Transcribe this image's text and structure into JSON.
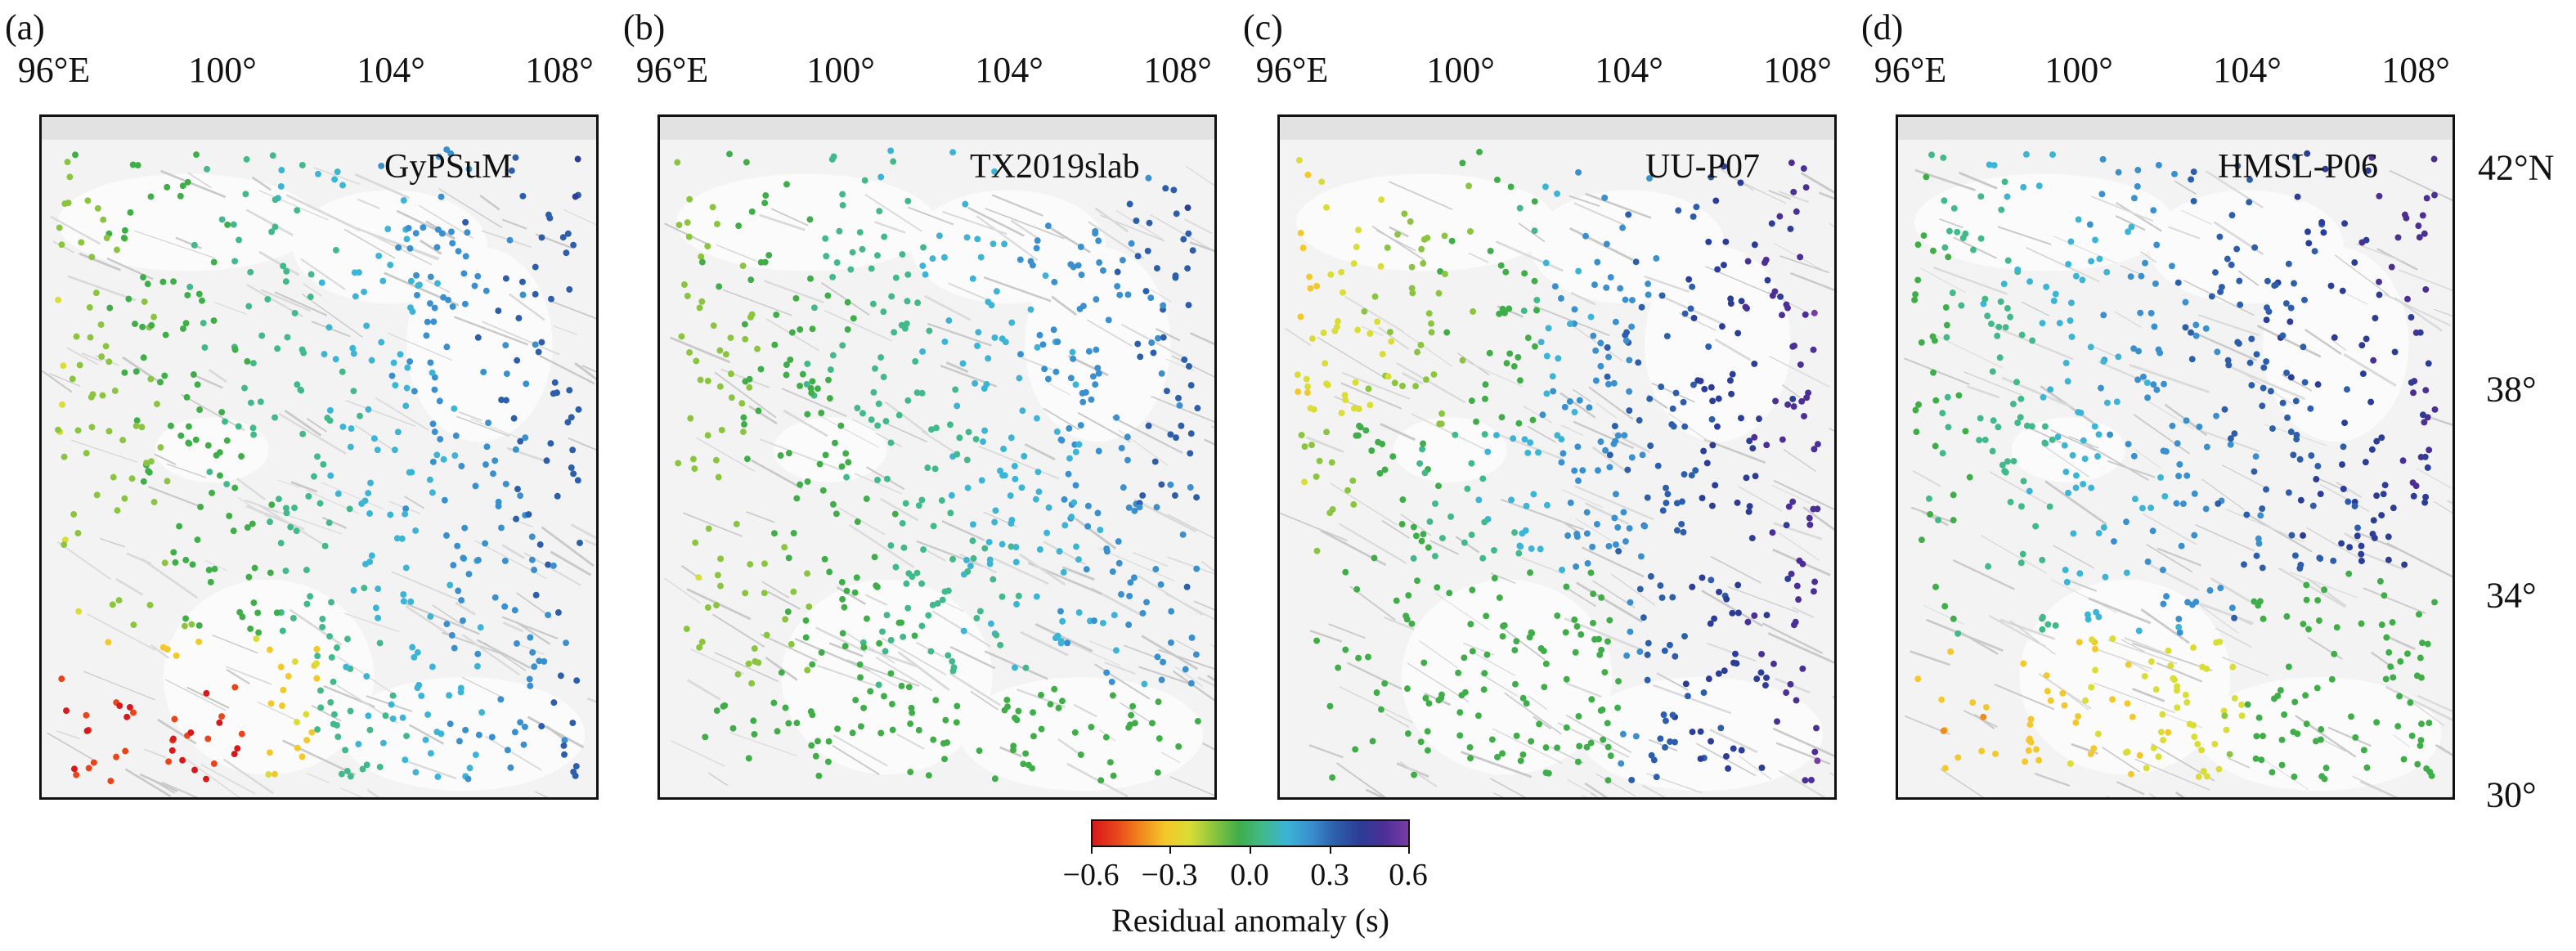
{
  "panels": [
    {
      "letter": "(a)",
      "model": "GyPSuM"
    },
    {
      "letter": "(b)",
      "model": "TX2019slab"
    },
    {
      "letter": "(c)",
      "model": "UU-P07"
    },
    {
      "letter": "(d)",
      "model": "HMSL-P06"
    }
  ],
  "lon_ticks": [
    "96°E",
    "100°",
    "104°",
    "108°"
  ],
  "lat_ticks": [
    "42°N",
    "38°",
    "34°",
    "30°"
  ],
  "colorbar": {
    "ticks": [
      "−0.6",
      "−0.3",
      "0.0",
      "0.3",
      "0.6"
    ],
    "label": "Residual anomaly (s)",
    "colors": [
      "#d7191c",
      "#e8461a",
      "#f08a1d",
      "#f3c82a",
      "#d9dd35",
      "#8bc53f",
      "#3fae49",
      "#42b98a",
      "#3bb4d6",
      "#3a8fce",
      "#2d5eab",
      "#2b3d96",
      "#4b2f97",
      "#7a3ba6"
    ]
  },
  "map": {
    "lon_range": [
      96,
      109
    ],
    "lat_range": [
      30,
      43.3
    ]
  }
}
